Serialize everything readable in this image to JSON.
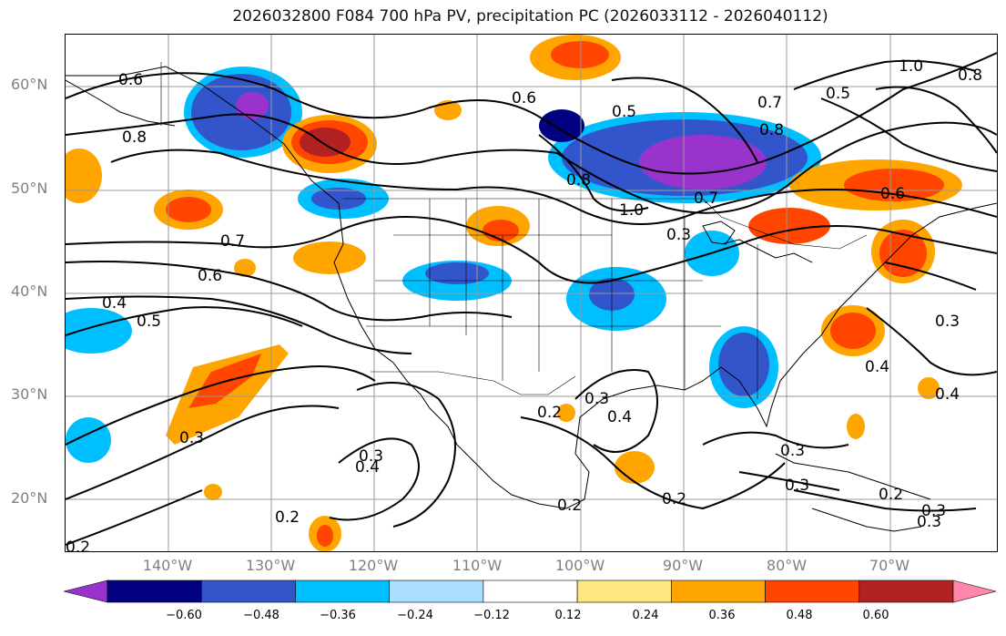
{
  "title": "2026032800 F084 700 hPa PV, precipitation PC (2026033112 - 2026040112)",
  "lat_labels": [
    "60°N",
    "50°N",
    "40°N",
    "30°N",
    "20°N"
  ],
  "lon_labels": [
    "140°W",
    "130°W",
    "120°W",
    "110°W",
    "100°W",
    "90°W",
    "80°W",
    "70°W"
  ],
  "colorbar": {
    "ticks": [
      "−0.60",
      "−0.48",
      "−0.36",
      "−0.24",
      "−0.12",
      "0.12",
      "0.24",
      "0.36",
      "0.48",
      "0.60"
    ],
    "colors": [
      "#9933cc",
      "#000080",
      "#3355cc",
      "#00bfff",
      "#aadfff",
      "#ffffff",
      "#ffe680",
      "#ffa500",
      "#ff4500",
      "#b22222",
      "#ff88aa"
    ]
  },
  "contour_labels": [
    "0.6",
    "0.8",
    "0.7",
    "0.6",
    "0.5",
    "0.4",
    "0.3",
    "0.2",
    "1.0",
    "0.7",
    "0.8",
    "0.5",
    "0.6",
    "0.3",
    "0.4",
    "0.3",
    "0.4",
    "0.2",
    "0.3",
    "0.3",
    "0.4",
    "0.2",
    "0.3",
    "0.2",
    "0.3",
    "0.4",
    "0.2",
    "1.0",
    "0.8",
    "0.5",
    "0.6",
    "0.7",
    "0.8",
    "0.3",
    "0.3",
    "0.2"
  ]
}
